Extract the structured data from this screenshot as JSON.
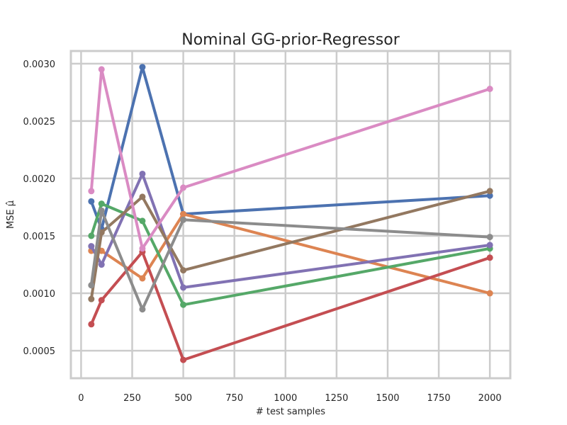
{
  "chart_data": {
    "type": "line",
    "title": "Nominal GG-prior-Regressor",
    "xlabel": "# test samples",
    "ylabel": "MSE μ̂",
    "xlim": [
      -50,
      2100
    ],
    "ylim": [
      0.00026,
      0.00311
    ],
    "xticks": [
      0,
      250,
      500,
      750,
      1000,
      1250,
      1500,
      1750,
      2000
    ],
    "xtick_labels": [
      "0",
      "250",
      "500",
      "750",
      "1000",
      "1250",
      "1500",
      "1750",
      "2000"
    ],
    "yticks": [
      0.0005,
      0.001,
      0.0015,
      0.002,
      0.0025,
      0.003
    ],
    "ytick_labels": [
      "0.0005",
      "0.0010",
      "0.0015",
      "0.0020",
      "0.0025",
      "0.0030"
    ],
    "grid": true,
    "x": [
      50,
      100,
      300,
      500,
      2000
    ],
    "series": [
      {
        "color": "#4c72b0",
        "values": [
          0.0018,
          0.00156,
          0.00297,
          0.00169,
          0.00185
        ]
      },
      {
        "color": "#dd8452",
        "values": [
          0.00137,
          0.00137,
          0.00113,
          0.00169,
          0.001
        ]
      },
      {
        "color": "#55a868",
        "values": [
          0.0015,
          0.00178,
          0.00163,
          0.0009,
          0.00139
        ]
      },
      {
        "color": "#c44e52",
        "values": [
          0.00073,
          0.00094,
          0.00136,
          0.00042,
          0.00131
        ]
      },
      {
        "color": "#8172b3",
        "values": [
          0.00141,
          0.00125,
          0.00204,
          0.00105,
          0.00142
        ]
      },
      {
        "color": "#937860",
        "values": [
          0.00095,
          0.00153,
          0.00184,
          0.0012,
          0.00189
        ]
      },
      {
        "color": "#da8bc3",
        "values": [
          0.00189,
          0.00295,
          0.00139,
          0.00192,
          0.00278
        ]
      },
      {
        "color": "#8c8c8c",
        "values": [
          0.00107,
          0.00172,
          0.00086,
          0.00164,
          0.00149
        ]
      }
    ]
  }
}
